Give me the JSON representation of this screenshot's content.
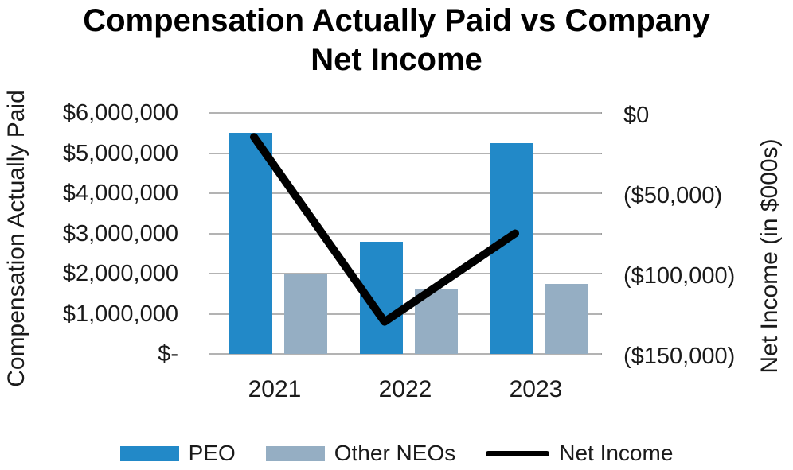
{
  "title": {
    "full": "Compensation Actually Paid vs Company Net Income",
    "line1": "Compensation Actually Paid vs Company",
    "line2": "Net Income"
  },
  "axes": {
    "left": {
      "title": "Compensation Actually Paid",
      "ticks": [
        "$6,000,000",
        "$5,000,000",
        "$4,000,000",
        "$3,000,000",
        "$2,000,000",
        "$1,000,000",
        "$-"
      ],
      "range": [
        0,
        6000000
      ]
    },
    "right": {
      "title": "Net Income (in $000s)",
      "ticks": [
        "$0",
        "($50,000)",
        "($100,000)",
        "($150,000)"
      ],
      "range": [
        -150000,
        0
      ]
    },
    "x": {
      "ticks": [
        "2021",
        "2022",
        "2023"
      ]
    }
  },
  "chart_data": {
    "type": "bar",
    "title": "Compensation Actually Paid vs Company Net Income",
    "categories": [
      "2021",
      "2022",
      "2023"
    ],
    "series": [
      {
        "name": "PEO",
        "type": "bar",
        "axis": "left",
        "color": "#2289c8",
        "values": [
          5500000,
          2800000,
          5250000
        ]
      },
      {
        "name": "Other NEOs",
        "type": "bar",
        "axis": "left",
        "color": "#95aec3",
        "values": [
          2000000,
          1600000,
          1750000
        ]
      },
      {
        "name": "Net Income",
        "type": "line",
        "axis": "right",
        "color": "#000000",
        "values": [
          -15000,
          -130000,
          -75000
        ]
      }
    ],
    "left_ylabel": "Compensation Actually Paid",
    "right_ylabel": "Net Income (in $000s)",
    "left_ylim": [
      0,
      6000000
    ],
    "right_ylim": [
      -150000,
      0
    ],
    "grid": true,
    "legend_position": "bottom"
  },
  "legend": {
    "items": [
      {
        "label": "PEO",
        "swatch": "bar",
        "color": "#2289c8"
      },
      {
        "label": "Other NEOs",
        "swatch": "bar",
        "color": "#95aec3"
      },
      {
        "label": "Net Income",
        "swatch": "line",
        "color": "#000000"
      }
    ]
  },
  "colors": {
    "grid": "#b3b3b3",
    "tick": "#9a9a9a",
    "text": "#1a1a1a",
    "background": "#ffffff"
  }
}
